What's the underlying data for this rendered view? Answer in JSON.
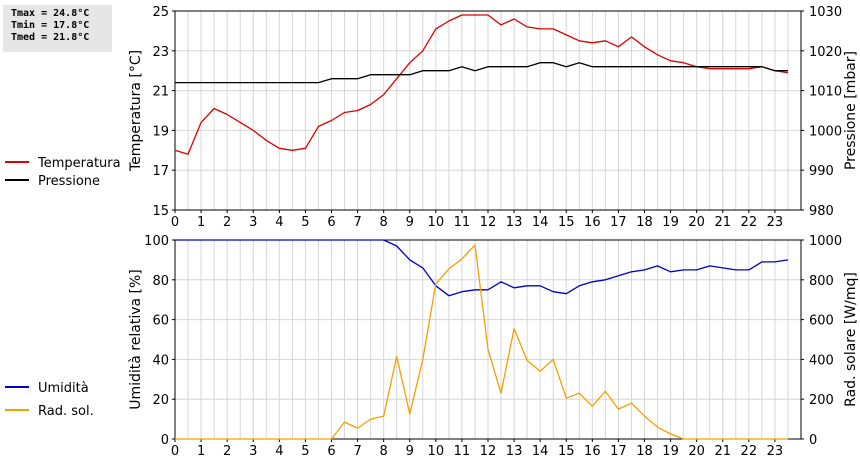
{
  "stats": {
    "tmax": "Tmax = 24.8°C",
    "tmin": "Tmin = 17.8°C",
    "tmed": "Tmed = 21.8°C"
  },
  "colors": {
    "temperature": "#dd0000",
    "pressure": "#000000",
    "humidity": "#0000cc",
    "radiation": "#f5a000",
    "grid": "#d6d6d6"
  },
  "chart_data": [
    {
      "type": "line",
      "ylabel": "Temperatura [°C]",
      "y2label": "Pressione [mbar]",
      "xlim": [
        0,
        24
      ],
      "ylim": [
        15,
        25
      ],
      "y2lim": [
        980,
        1030
      ],
      "xticks": [
        "0",
        "1",
        "2",
        "3",
        "4",
        "5",
        "6",
        "7",
        "8",
        "9",
        "10",
        "11",
        "12",
        "13",
        "14",
        "15",
        "16",
        "17",
        "18",
        "19",
        "20",
        "21",
        "22",
        "23"
      ],
      "yticks": [
        "15",
        "17",
        "19",
        "21",
        "23",
        "25"
      ],
      "y2ticks": [
        "980",
        "990",
        "1000",
        "1010",
        "1020",
        "1030"
      ],
      "grid": true,
      "legend_position": "left",
      "series": [
        {
          "name": "Temperatura",
          "axis": "left",
          "x": [
            0,
            0.25,
            0.5,
            1,
            1.5,
            2,
            2.5,
            3,
            3.5,
            4,
            4.5,
            5,
            5.5,
            6,
            6.5,
            7,
            7.5,
            8,
            8.5,
            9,
            9.5,
            10,
            10.5,
            11,
            11.5,
            12,
            12.5,
            13,
            13.5,
            14,
            14.5,
            15,
            15.5,
            16,
            16.5,
            17,
            17.5,
            18,
            18.5,
            19,
            19.5,
            20,
            20.5,
            21,
            21.5,
            22,
            22.5,
            23,
            23.5
          ],
          "values": [
            18.0,
            17.9,
            17.8,
            19.4,
            20.1,
            19.8,
            19.4,
            19.0,
            18.5,
            18.1,
            18.0,
            18.1,
            19.2,
            19.5,
            19.9,
            20.0,
            20.3,
            20.8,
            21.6,
            22.4,
            23.0,
            24.1,
            24.5,
            24.8,
            24.8,
            24.8,
            24.3,
            24.6,
            24.2,
            24.1,
            24.1,
            23.8,
            23.5,
            23.4,
            23.5,
            23.2,
            23.7,
            23.2,
            22.8,
            22.5,
            22.4,
            22.2,
            22.1,
            22.1,
            22.1,
            22.1,
            22.2,
            22.0,
            21.9
          ]
        },
        {
          "name": "Pressione",
          "axis": "right",
          "x": [
            0,
            0.5,
            1,
            1.5,
            2,
            2.5,
            3,
            3.5,
            4,
            4.5,
            5,
            5.5,
            6,
            6.5,
            7,
            7.5,
            8,
            8.5,
            9,
            9.5,
            10,
            10.5,
            11,
            11.5,
            12,
            12.5,
            13,
            13.5,
            14,
            14.5,
            15,
            15.5,
            16,
            16.5,
            17,
            17.5,
            18,
            18.5,
            19,
            19.5,
            20,
            20.5,
            21,
            21.5,
            22,
            22.5,
            23,
            23.5
          ],
          "values": [
            1012,
            1012,
            1012,
            1012,
            1012,
            1012,
            1012,
            1012,
            1012,
            1012,
            1012,
            1012,
            1013,
            1013,
            1013,
            1014,
            1014,
            1014,
            1014,
            1015,
            1015,
            1015,
            1016,
            1015,
            1016,
            1016,
            1016,
            1016,
            1017,
            1017,
            1016,
            1017,
            1016,
            1016,
            1016,
            1016,
            1016,
            1016,
            1016,
            1016,
            1016,
            1016,
            1016,
            1016,
            1016,
            1016,
            1015,
            1015
          ]
        }
      ]
    },
    {
      "type": "line",
      "ylabel": "Umidità relativa [%]",
      "y2label": "Rad. solare [W/mq]",
      "xlim": [
        0,
        24
      ],
      "ylim": [
        0,
        100
      ],
      "y2lim": [
        0,
        1000
      ],
      "xticks": [
        "0",
        "1",
        "2",
        "3",
        "4",
        "5",
        "6",
        "7",
        "8",
        "9",
        "10",
        "11",
        "12",
        "13",
        "14",
        "15",
        "16",
        "17",
        "18",
        "19",
        "20",
        "21",
        "22",
        "23"
      ],
      "yticks": [
        "0",
        "20",
        "40",
        "60",
        "80",
        "100"
      ],
      "y2ticks": [
        "0",
        "200",
        "400",
        "600",
        "800",
        "1000"
      ],
      "grid": true,
      "legend_position": "left",
      "series": [
        {
          "name": "Umidità",
          "axis": "left",
          "x": [
            0,
            0.5,
            1,
            1.5,
            2,
            2.5,
            3,
            3.5,
            4,
            4.5,
            5,
            5.5,
            6,
            6.5,
            7,
            7.5,
            8,
            8.5,
            9,
            9.5,
            10,
            10.5,
            11,
            11.5,
            12,
            12.5,
            13,
            13.5,
            14,
            14.5,
            15,
            15.5,
            16,
            16.5,
            17,
            17.5,
            18,
            18.5,
            19,
            19.5,
            20,
            20.5,
            21,
            21.5,
            22,
            22.5,
            23,
            23.5
          ],
          "values": [
            100,
            100,
            100,
            100,
            100,
            100,
            100,
            100,
            100,
            100,
            100,
            100,
            100,
            100,
            100,
            100,
            100,
            97,
            90,
            86,
            77,
            72,
            74,
            75,
            75,
            79,
            76,
            77,
            77,
            74,
            73,
            77,
            79,
            80,
            82,
            84,
            85,
            87,
            84,
            85,
            85,
            87,
            86,
            85,
            85,
            89,
            89,
            90
          ]
        },
        {
          "name": "Rad. sol.",
          "axis": "right",
          "x": [
            0,
            0.5,
            1,
            1.5,
            2,
            2.5,
            3,
            3.5,
            4,
            4.5,
            5,
            5.5,
            6,
            6.5,
            7,
            7.5,
            8,
            8.5,
            9,
            9.5,
            10,
            10.5,
            11,
            11.5,
            12,
            12.5,
            13,
            13.5,
            14,
            14.5,
            15,
            15.5,
            16,
            16.5,
            17,
            17.5,
            18,
            18.5,
            19,
            19.5,
            20,
            20.5,
            21,
            21.5,
            22,
            22.5,
            23,
            23.5
          ],
          "values": [
            0,
            0,
            0,
            0,
            0,
            0,
            0,
            0,
            0,
            0,
            0,
            0,
            0,
            85,
            55,
            100,
            115,
            415,
            125,
            400,
            780,
            855,
            905,
            975,
            450,
            230,
            555,
            395,
            340,
            400,
            205,
            230,
            165,
            240,
            150,
            180,
            115,
            60,
            25,
            0,
            0,
            0,
            0,
            0,
            0,
            0,
            0,
            0
          ]
        }
      ]
    }
  ]
}
